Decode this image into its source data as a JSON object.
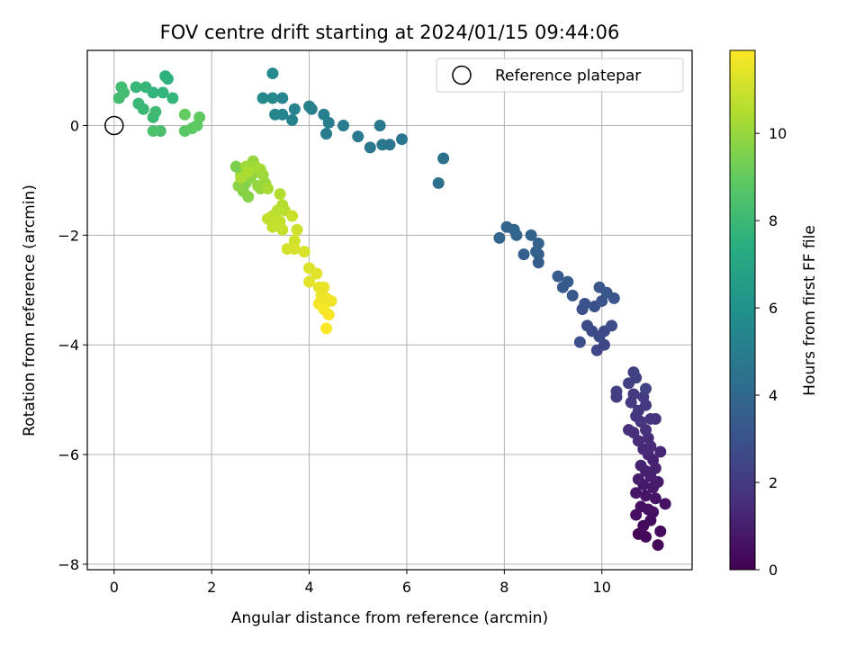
{
  "chart_data": {
    "type": "scatter",
    "title": "FOV centre drift starting at 2024/01/15 09:44:06",
    "xlabel": "Angular distance from reference (arcmin)",
    "ylabel": "Rotation from reference (arcmin)",
    "xlim": [
      -0.55,
      11.85
    ],
    "ylim": [
      -8.1,
      1.37
    ],
    "xticks": [
      0,
      2,
      4,
      6,
      8,
      10
    ],
    "yticks": [
      0,
      -2,
      -4,
      -6,
      -8
    ],
    "grid": true,
    "legend": {
      "placement": "top-right",
      "entries": [
        "Reference platepar"
      ]
    },
    "reference_point": {
      "x": 0,
      "y": 0
    },
    "colorbar": {
      "label": "Hours from first FF file",
      "range": [
        0,
        11.9
      ],
      "ticks": [
        0,
        2,
        4,
        6,
        8,
        10
      ],
      "colormap": "viridis"
    },
    "points": [
      [
        10.75,
        -7.45,
        0.1
      ],
      [
        11.15,
        -7.65,
        0.2
      ],
      [
        10.9,
        -7.5,
        0.25
      ],
      [
        11.2,
        -7.4,
        0.3
      ],
      [
        10.85,
        -7.3,
        0.35
      ],
      [
        11.0,
        -7.2,
        0.4
      ],
      [
        10.7,
        -7.1,
        0.45
      ],
      [
        11.05,
        -7.05,
        0.5
      ],
      [
        10.95,
        -7.0,
        0.55
      ],
      [
        11.3,
        -6.9,
        0.6
      ],
      [
        10.8,
        -6.95,
        0.6
      ],
      [
        11.1,
        -6.8,
        0.65
      ],
      [
        10.9,
        -6.75,
        0.7
      ],
      [
        10.7,
        -6.7,
        0.75
      ],
      [
        11.05,
        -6.6,
        0.8
      ],
      [
        10.85,
        -6.55,
        0.85
      ],
      [
        11.15,
        -6.5,
        0.9
      ],
      [
        10.75,
        -6.45,
        0.95
      ],
      [
        11.0,
        -6.4,
        1.0
      ],
      [
        10.9,
        -6.3,
        1.05
      ],
      [
        11.1,
        -6.25,
        1.1
      ],
      [
        10.8,
        -6.2,
        1.15
      ],
      [
        11.05,
        -6.1,
        1.2
      ],
      [
        10.95,
        -6.0,
        1.25
      ],
      [
        11.2,
        -5.95,
        1.3
      ],
      [
        10.85,
        -5.9,
        1.35
      ],
      [
        11.0,
        -5.85,
        1.4
      ],
      [
        10.75,
        -5.75,
        1.45
      ],
      [
        10.95,
        -5.7,
        1.5
      ],
      [
        10.65,
        -5.6,
        1.55
      ],
      [
        10.55,
        -5.55,
        1.6
      ],
      [
        10.9,
        -5.55,
        1.65
      ],
      [
        11.1,
        -5.35,
        1.7
      ],
      [
        10.8,
        -5.4,
        1.75
      ],
      [
        10.7,
        -5.3,
        1.8
      ],
      [
        11.0,
        -5.35,
        1.85
      ],
      [
        10.75,
        -5.2,
        1.9
      ],
      [
        10.9,
        -5.1,
        1.95
      ],
      [
        10.6,
        -5.05,
        2.0
      ],
      [
        10.65,
        -4.9,
        2.05
      ],
      [
        10.85,
        -4.95,
        2.1
      ],
      [
        10.3,
        -4.95,
        2.15
      ],
      [
        10.3,
        -4.85,
        2.2
      ],
      [
        10.55,
        -4.7,
        2.25
      ],
      [
        10.7,
        -4.6,
        2.3
      ],
      [
        10.65,
        -4.5,
        2.35
      ],
      [
        10.9,
        -4.8,
        2.4
      ],
      [
        10.05,
        -4.0,
        2.5
      ],
      [
        9.9,
        -4.1,
        2.55
      ],
      [
        9.95,
        -3.85,
        2.6
      ],
      [
        10.05,
        -3.75,
        2.65
      ],
      [
        9.8,
        -3.75,
        2.7
      ],
      [
        9.7,
        -3.65,
        2.75
      ],
      [
        10.2,
        -3.65,
        2.8
      ],
      [
        9.55,
        -3.95,
        2.85
      ],
      [
        9.6,
        -3.35,
        2.9
      ],
      [
        9.85,
        -3.3,
        2.95
      ],
      [
        10.0,
        -3.2,
        3.0
      ],
      [
        9.65,
        -3.25,
        3.05
      ],
      [
        10.25,
        -3.15,
        3.1
      ],
      [
        10.1,
        -3.05,
        3.15
      ],
      [
        9.95,
        -2.95,
        3.2
      ],
      [
        9.4,
        -3.1,
        3.25
      ],
      [
        9.2,
        -2.95,
        3.3
      ],
      [
        9.3,
        -2.85,
        3.35
      ],
      [
        9.1,
        -2.75,
        3.4
      ],
      [
        8.7,
        -2.5,
        3.5
      ],
      [
        8.7,
        -2.35,
        3.55
      ],
      [
        8.4,
        -2.35,
        3.6
      ],
      [
        8.65,
        -2.3,
        3.65
      ],
      [
        8.7,
        -2.15,
        3.7
      ],
      [
        8.55,
        -2.0,
        3.75
      ],
      [
        8.25,
        -2.0,
        3.8
      ],
      [
        7.9,
        -2.05,
        3.85
      ],
      [
        8.05,
        -1.85,
        3.9
      ],
      [
        8.2,
        -1.9,
        3.95
      ],
      [
        6.65,
        -1.05,
        4.3
      ],
      [
        6.75,
        -0.6,
        4.35
      ],
      [
        5.9,
        -0.25,
        4.6
      ],
      [
        5.65,
        -0.35,
        4.65
      ],
      [
        5.5,
        -0.35,
        4.7
      ],
      [
        5.25,
        -0.4,
        4.75
      ],
      [
        5.45,
        0.0,
        4.8
      ],
      [
        5.0,
        -0.2,
        4.85
      ],
      [
        4.7,
        0.0,
        4.95
      ],
      [
        4.35,
        -0.15,
        5.0
      ],
      [
        4.4,
        0.05,
        5.05
      ],
      [
        4.3,
        0.2,
        5.1
      ],
      [
        4.05,
        0.3,
        5.15
      ],
      [
        4.0,
        0.35,
        5.2
      ],
      [
        3.7,
        0.3,
        5.25
      ],
      [
        3.65,
        0.1,
        5.3
      ],
      [
        3.45,
        0.2,
        5.35
      ],
      [
        3.3,
        0.2,
        5.4
      ],
      [
        3.45,
        0.5,
        5.45
      ],
      [
        3.25,
        0.5,
        5.5
      ],
      [
        3.05,
        0.5,
        5.55
      ],
      [
        3.25,
        0.95,
        5.6
      ],
      [
        1.05,
        0.9,
        7.6
      ],
      [
        1.1,
        0.85,
        7.65
      ],
      [
        0.8,
        0.6,
        7.7
      ],
      [
        1.0,
        0.6,
        7.75
      ],
      [
        1.2,
        0.5,
        7.8
      ],
      [
        0.65,
        0.7,
        7.85
      ],
      [
        0.45,
        0.7,
        7.9
      ],
      [
        0.5,
        0.4,
        7.95
      ],
      [
        0.6,
        0.3,
        8.0
      ],
      [
        0.8,
        0.15,
        8.05
      ],
      [
        0.85,
        0.25,
        8.1
      ],
      [
        0.15,
        0.7,
        8.15
      ],
      [
        0.1,
        0.5,
        8.2
      ],
      [
        0.2,
        0.6,
        8.25
      ],
      [
        0.95,
        -0.1,
        8.4
      ],
      [
        0.8,
        -0.1,
        8.45
      ],
      [
        1.45,
        -0.1,
        8.8
      ],
      [
        1.6,
        -0.05,
        8.85
      ],
      [
        1.7,
        0.0,
        8.9
      ],
      [
        1.75,
        0.15,
        8.95
      ],
      [
        1.45,
        0.2,
        9.0
      ],
      [
        2.5,
        -0.75,
        9.5
      ],
      [
        2.6,
        -0.9,
        9.55
      ],
      [
        2.7,
        -1.05,
        9.6
      ],
      [
        2.65,
        -1.2,
        9.65
      ],
      [
        2.75,
        -1.3,
        9.7
      ],
      [
        2.55,
        -1.1,
        9.75
      ],
      [
        2.8,
        -0.95,
        9.8
      ],
      [
        2.9,
        -0.85,
        9.85
      ],
      [
        2.85,
        -0.65,
        9.9
      ],
      [
        2.95,
        -1.1,
        9.95
      ],
      [
        3.0,
        -1.15,
        10.0
      ],
      [
        3.1,
        -1.05,
        10.05
      ],
      [
        3.05,
        -0.9,
        10.1
      ],
      [
        2.7,
        -0.75,
        10.15
      ],
      [
        2.9,
        -0.75,
        10.2
      ],
      [
        3.0,
        -0.8,
        10.25
      ],
      [
        3.15,
        -1.15,
        10.3
      ],
      [
        2.6,
        -0.95,
        10.35
      ],
      [
        2.75,
        -0.85,
        10.4
      ],
      [
        3.4,
        -1.25,
        10.5
      ],
      [
        3.45,
        -1.45,
        10.55
      ],
      [
        3.35,
        -1.55,
        10.6
      ],
      [
        3.5,
        -1.55,
        10.65
      ],
      [
        3.25,
        -1.65,
        10.7
      ],
      [
        3.15,
        -1.7,
        10.75
      ],
      [
        3.4,
        -1.75,
        10.8
      ],
      [
        3.25,
        -1.85,
        10.85
      ],
      [
        3.45,
        -1.9,
        10.9
      ],
      [
        3.65,
        -1.65,
        10.95
      ],
      [
        3.75,
        -1.9,
        11.0
      ],
      [
        3.7,
        -2.1,
        11.05
      ],
      [
        3.55,
        -2.25,
        11.1
      ],
      [
        3.7,
        -2.25,
        11.15
      ],
      [
        3.9,
        -2.3,
        11.2
      ],
      [
        4.0,
        -2.6,
        11.3
      ],
      [
        4.15,
        -2.7,
        11.35
      ],
      [
        4.0,
        -2.85,
        11.4
      ],
      [
        4.2,
        -2.95,
        11.45
      ],
      [
        4.3,
        -2.95,
        11.5
      ],
      [
        4.25,
        -3.1,
        11.55
      ],
      [
        4.35,
        -3.15,
        11.6
      ],
      [
        4.45,
        -3.2,
        11.65
      ],
      [
        4.2,
        -3.25,
        11.7
      ],
      [
        4.3,
        -3.35,
        11.75
      ],
      [
        4.4,
        -3.45,
        11.8
      ],
      [
        4.35,
        -3.7,
        11.85
      ]
    ]
  }
}
